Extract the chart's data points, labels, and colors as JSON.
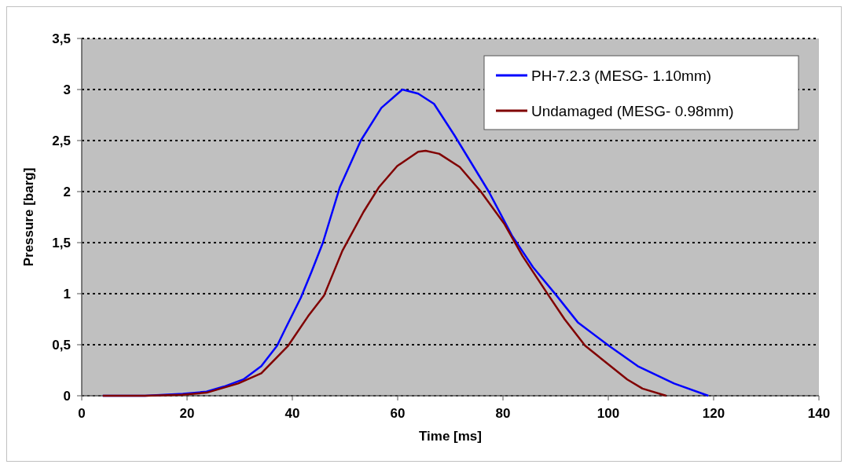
{
  "chart_data": {
    "type": "line",
    "xlabel": "Time [ms]",
    "ylabel": "Pressure [barg]",
    "xlim": [
      0,
      140
    ],
    "xticks": [
      0,
      20,
      40,
      60,
      80,
      100,
      120,
      140
    ],
    "ylim": [
      0,
      3.5
    ],
    "yticks": [
      0,
      {
        "value": 0.5,
        "label": "0,5"
      },
      1,
      {
        "value": 1.5,
        "label": "1,5"
      },
      2,
      {
        "value": 2.5,
        "label": "2,5"
      },
      3,
      {
        "value": 3.5,
        "label": "3,5"
      }
    ],
    "grid": "y",
    "legend": "top right",
    "marker": "none",
    "line_style": "solid",
    "series": [
      {
        "name": "PH-7.2.3 (MESG- 1.10mm)",
        "color": "#0000ff",
        "x": [
          4,
          12,
          19.2,
          23.7,
          27,
          30.7,
          34.1,
          37.1,
          38.7,
          41.6,
          43.6,
          45.8,
          49,
          53,
          56.9,
          60.9,
          63.9,
          66.9,
          70.8,
          77.3,
          81.7,
          85.7,
          90.2,
          94.2,
          100.1,
          105.6,
          112.5,
          119
        ],
        "values": [
          0,
          0,
          0.02,
          0.04,
          0.09,
          0.16,
          0.29,
          0.49,
          0.66,
          0.96,
          1.21,
          1.5,
          2.04,
          2.5,
          2.82,
          3,
          2.96,
          2.86,
          2.55,
          2,
          1.57,
          1.26,
          0.98,
          0.72,
          0.49,
          0.29,
          0.12,
          0
        ]
      },
      {
        "name": "Undamaged (MESG- 0.98mm)",
        "color": "#800000",
        "x": [
          4,
          12,
          19,
          23.7,
          29.7,
          34.1,
          39.2,
          43,
          46,
          49.5,
          53.5,
          56.4,
          59.9,
          63.9,
          65.3,
          67.9,
          71.8,
          75.8,
          80.3,
          83.7,
          88.7,
          91.7,
          95.6,
          103.6,
          106.5,
          111
        ],
        "values": [
          0,
          0,
          0.01,
          0.03,
          0.12,
          0.22,
          0.49,
          0.78,
          0.98,
          1.42,
          1.8,
          2.04,
          2.25,
          2.39,
          2.4,
          2.37,
          2.24,
          2,
          1.68,
          1.37,
          0.98,
          0.75,
          0.49,
          0.16,
          0.07,
          0
        ]
      }
    ]
  }
}
